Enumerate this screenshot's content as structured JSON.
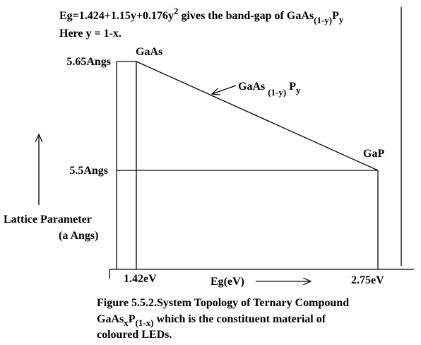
{
  "header": {
    "equation": [
      "Eg=1.424+1.15y+0.176y",
      "2",
      " gives the band-gap of GaAs",
      "(1-y)",
      "P",
      "y"
    ],
    "note": "Here y = 1-x."
  },
  "diagram": {
    "top_label": "GaAs",
    "mid_label": [
      "GaAs",
      "(1-y)",
      "P",
      "y"
    ],
    "right_label": "GaP",
    "y_labels": [
      "5.65Angs",
      "5.5Angs"
    ],
    "y_axis_title": [
      "Lattice Parameter",
      "(a Angs)"
    ],
    "x_labels": [
      "1.42eV",
      "2.75eV"
    ],
    "x_axis_title": "Eg(eV)"
  },
  "caption": {
    "line1": "Figure 5.5.2.System Topology of Ternary Compound",
    "line2": [
      "GaAs",
      "x",
      "P",
      "(1-x)",
      " which is the constituent material of"
    ],
    "line3": "coloured LEDs."
  }
}
